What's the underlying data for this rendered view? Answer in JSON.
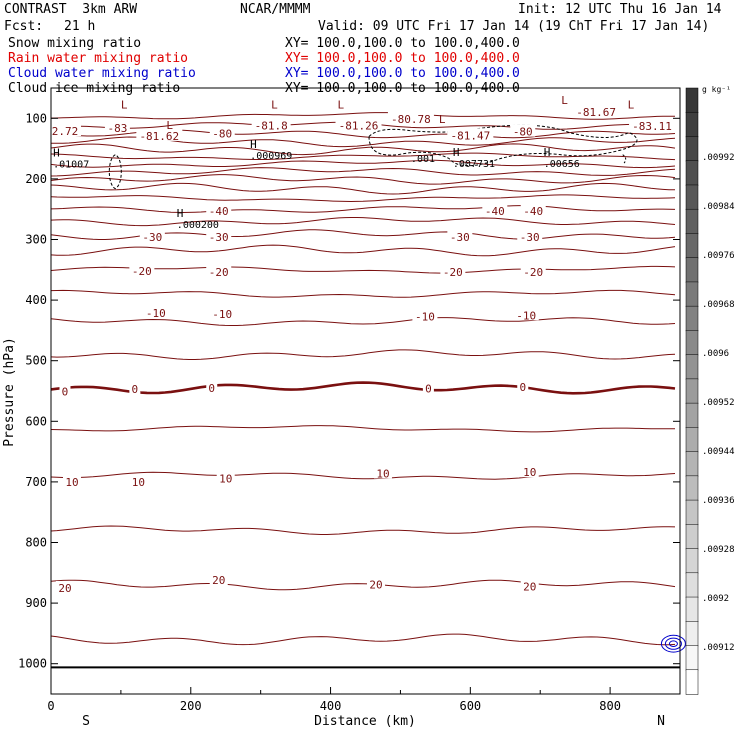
{
  "header": {
    "title": "CONTRAST  3km ARW",
    "center": "NCAR/MMMM",
    "init": "Init: 12 UTC Thu 16 Jan 14",
    "fcst_label": "Fcst:",
    "fcst_value": "21 h",
    "valid": "Valid: 09 UTC Fri 17 Jan 14 (19 ChT Fri 17 Jan 14)",
    "fields": [
      {
        "name": "Snow mixing ratio",
        "xy": "XY= 100.0,100.0 to 100.0,400.0",
        "color": "#000000"
      },
      {
        "name": "Rain water mixing ratio",
        "xy": "XY= 100.0,100.0 to 100.0,400.0",
        "color": "#e00000"
      },
      {
        "name": "Cloud water mixing ratio",
        "xy": "XY= 100.0,100.0 to 100.0,400.0",
        "color": "#0000cc"
      },
      {
        "name": "Cloud ice mixing ratio",
        "xy": "XY= 100.0,100.0 to 100.0,400.0",
        "color": "#000000"
      }
    ]
  },
  "chart_data": {
    "type": "contour",
    "xlabel": "Distance (km)",
    "ylabel": "Pressure (hPa)",
    "xlim": [
      0,
      900
    ],
    "ylim": [
      1050,
      50
    ],
    "xticks": [
      0,
      200,
      400,
      600,
      800
    ],
    "yticks": [
      100,
      200,
      300,
      400,
      500,
      600,
      700,
      800,
      900,
      1000
    ],
    "x_end_labels": {
      "left": "S",
      "right": "N"
    },
    "colorbar": {
      "unit": "g kg⁻¹",
      "labels": [
        ".00992",
        ".00984",
        ".00976",
        ".00968",
        ".0096",
        ".00952",
        ".00944",
        ".00936",
        ".00928",
        ".0092",
        ".00912"
      ]
    },
    "isotherm_levels_degC": [
      -80,
      -40,
      -30,
      -20,
      -10,
      0,
      10,
      20
    ],
    "contour_labels": [
      {
        "text": "-83",
        "x": 95,
        "p": 116
      },
      {
        "text": "-81.62",
        "x": 155,
        "p": 129
      },
      {
        "text": "-80",
        "x": 245,
        "p": 125
      },
      {
        "text": "-81.8",
        "x": 315,
        "p": 112
      },
      {
        "text": "-81.26",
        "x": 440,
        "p": 112
      },
      {
        "text": "-80.78",
        "x": 515,
        "p": 101
      },
      {
        "text": "-81.47",
        "x": 600,
        "p": 128
      },
      {
        "text": "-80",
        "x": 675,
        "p": 122
      },
      {
        "text": "-81.67",
        "x": 780,
        "p": 90
      },
      {
        "text": "-83.11",
        "x": 860,
        "p": 113
      },
      {
        "text": "2.72",
        "x": 20,
        "p": 121
      },
      {
        "text": "-40",
        "x": 240,
        "p": 253
      },
      {
        "text": "-40",
        "x": 635,
        "p": 253
      },
      {
        "text": "-40",
        "x": 690,
        "p": 253
      },
      {
        "text": "-30",
        "x": 145,
        "p": 296
      },
      {
        "text": "-30",
        "x": 240,
        "p": 296
      },
      {
        "text": "-30",
        "x": 585,
        "p": 296
      },
      {
        "text": "-30",
        "x": 685,
        "p": 296
      },
      {
        "text": "-20",
        "x": 130,
        "p": 352
      },
      {
        "text": "-20",
        "x": 240,
        "p": 354
      },
      {
        "text": "-20",
        "x": 575,
        "p": 354
      },
      {
        "text": "-20",
        "x": 690,
        "p": 354
      },
      {
        "text": "-10",
        "x": 150,
        "p": 421
      },
      {
        "text": "-10",
        "x": 245,
        "p": 423
      },
      {
        "text": "-10",
        "x": 535,
        "p": 427
      },
      {
        "text": "-10",
        "x": 680,
        "p": 425
      },
      {
        "text": "0",
        "x": 20,
        "p": 551
      },
      {
        "text": "0",
        "x": 120,
        "p": 547
      },
      {
        "text": "0",
        "x": 230,
        "p": 545
      },
      {
        "text": "0",
        "x": 540,
        "p": 546
      },
      {
        "text": "0",
        "x": 675,
        "p": 543
      },
      {
        "text": "10",
        "x": 30,
        "p": 700
      },
      {
        "text": "10",
        "x": 125,
        "p": 700
      },
      {
        "text": "10",
        "x": 250,
        "p": 694
      },
      {
        "text": "10",
        "x": 475,
        "p": 686
      },
      {
        "text": "10",
        "x": 685,
        "p": 684
      },
      {
        "text": "20",
        "x": 20,
        "p": 875
      },
      {
        "text": "20",
        "x": 240,
        "p": 862
      },
      {
        "text": "20",
        "x": 465,
        "p": 869
      },
      {
        "text": "20",
        "x": 685,
        "p": 873
      }
    ],
    "extrema": [
      {
        "mark": "L",
        "value": "",
        "x": 100,
        "p": 84
      },
      {
        "mark": "L",
        "value": "",
        "x": 165,
        "p": 118
      },
      {
        "mark": "L",
        "value": "",
        "x": 315,
        "p": 84
      },
      {
        "mark": "L",
        "value": "",
        "x": 410,
        "p": 84
      },
      {
        "mark": "L",
        "value": "",
        "x": 555,
        "p": 108
      },
      {
        "mark": "L",
        "value": "",
        "x": 730,
        "p": 76
      },
      {
        "mark": "L",
        "value": "",
        "x": 825,
        "p": 84
      },
      {
        "mark": "H",
        "value": ".01007",
        "x": 3,
        "p": 163
      },
      {
        "mark": "H",
        "value": ".000969",
        "x": 285,
        "p": 149
      },
      {
        "mark": "H",
        "value": ".007731",
        "x": 575,
        "p": 162
      },
      {
        "mark": "H",
        "value": ".00656",
        "x": 705,
        "p": 162
      },
      {
        "mark": "H",
        "value": ".000200",
        "x": 180,
        "p": 263
      }
    ],
    "snow_contours": [
      {
        "label": ".001",
        "x": 515,
        "p": 172
      },
      {
        "label": "",
        "x": 92,
        "p": 180
      },
      {
        "label": "",
        "x": 820,
        "p": 165
      }
    ],
    "cloud_water_contours": [
      {
        "label": "",
        "x": 882,
        "p": 967
      }
    ]
  }
}
